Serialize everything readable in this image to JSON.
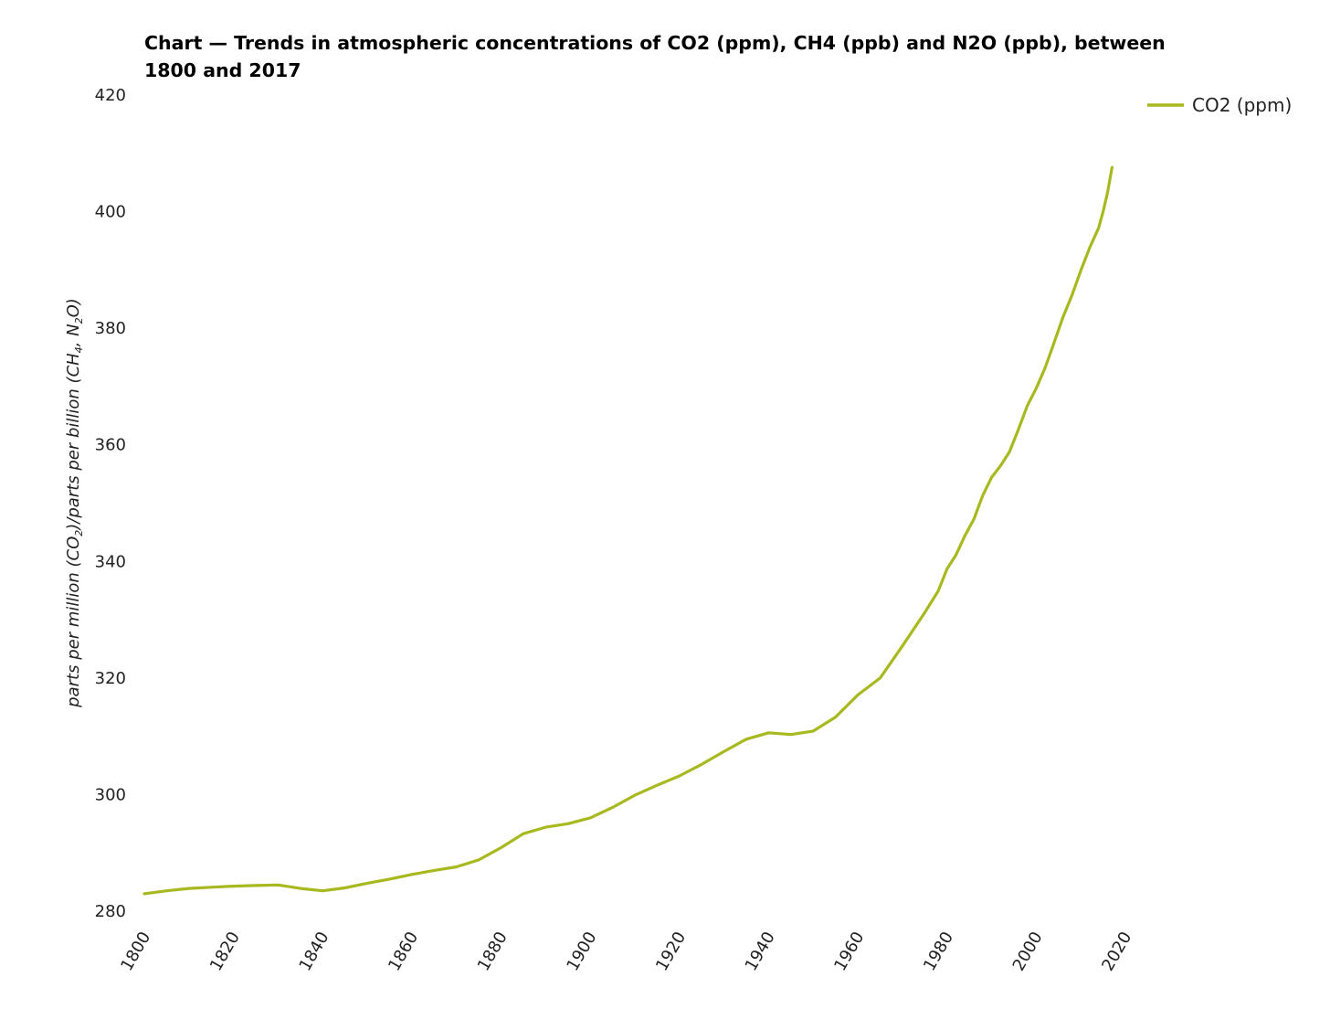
{
  "chart_data": {
    "type": "line",
    "title": "Chart — Trends in atmospheric concentrations of CO2 (ppm), CH4 (ppb) and N2O (ppb), between 1800 and 2017",
    "ylabel": {
      "parts": [
        {
          "text": "parts per million (CO"
        },
        {
          "text": "2",
          "sub": true
        },
        {
          "text": ")/parts per billion (CH"
        },
        {
          "text": "4",
          "sub": true
        },
        {
          "text": ", N"
        },
        {
          "text": "2",
          "sub": true
        },
        {
          "text": "O)"
        }
      ]
    },
    "xlabel": "",
    "xlim": [
      1800,
      2020
    ],
    "ylim": [
      280,
      420
    ],
    "x_ticks": [
      1800,
      1820,
      1840,
      1860,
      1880,
      1900,
      1920,
      1940,
      1960,
      1980,
      2000,
      2020
    ],
    "y_ticks": [
      280,
      300,
      320,
      340,
      360,
      380,
      400,
      420
    ],
    "grid": false,
    "legend_position": "top-right",
    "series": [
      {
        "name": "CO2 (ppm)",
        "color": "#a8b920",
        "x": [
          1800,
          1805,
          1810,
          1815,
          1820,
          1825,
          1830,
          1835,
          1840,
          1845,
          1850,
          1855,
          1860,
          1865,
          1870,
          1875,
          1880,
          1885,
          1890,
          1895,
          1900,
          1905,
          1910,
          1915,
          1920,
          1925,
          1930,
          1935,
          1940,
          1945,
          1950,
          1955,
          1960,
          1965,
          1970,
          1975,
          1978,
          1980,
          1982,
          1984,
          1986,
          1988,
          1990,
          1992,
          1994,
          1996,
          1998,
          2000,
          2002,
          2004,
          2006,
          2008,
          2010,
          2012,
          2014,
          2015,
          2016,
          2017
        ],
        "values": [
          283.0,
          283.5,
          283.9,
          284.1,
          284.3,
          284.4,
          284.5,
          283.9,
          283.5,
          284.0,
          284.8,
          285.5,
          286.3,
          287.0,
          287.6,
          288.8,
          290.9,
          293.3,
          294.4,
          295.0,
          296.0,
          297.8,
          299.9,
          301.6,
          303.2,
          305.2,
          307.4,
          309.5,
          310.6,
          310.3,
          310.9,
          313.3,
          317.1,
          320.0,
          325.5,
          331.2,
          334.9,
          338.7,
          341.1,
          344.4,
          347.2,
          351.3,
          354.4,
          356.4,
          358.8,
          362.6,
          366.7,
          369.7,
          373.2,
          377.5,
          381.9,
          385.6,
          389.9,
          393.8,
          397.2,
          400.0,
          403.3,
          407.6
        ]
      }
    ]
  }
}
